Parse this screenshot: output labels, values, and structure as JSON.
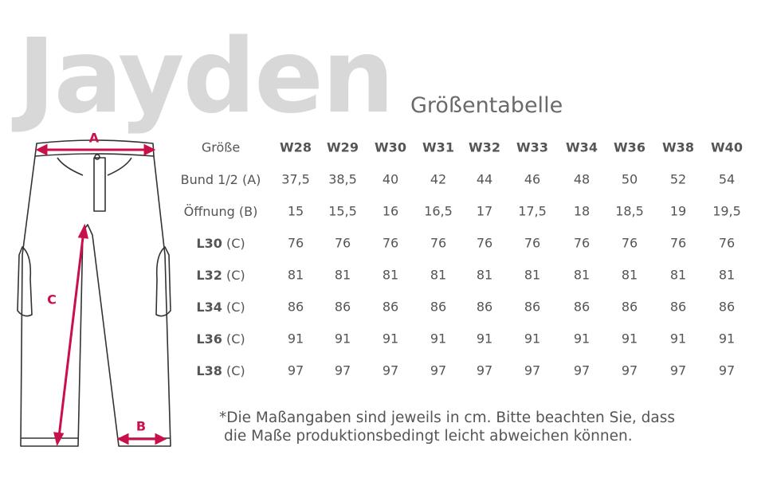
{
  "header": {
    "title": "Jayden",
    "subtitle": "Größentabelle"
  },
  "diagram": {
    "labels": [
      "A",
      "C",
      "B"
    ]
  },
  "table": {
    "header": {
      "label": "Größe",
      "sizes": [
        "W28",
        "W29",
        "W30",
        "W31",
        "W32",
        "W33",
        "W34",
        "W36",
        "W38",
        "W40"
      ]
    },
    "rows": [
      {
        "label": [
          "Bund 1/2 (A)"
        ],
        "values": [
          "37,5",
          "38,5",
          "40",
          "42",
          "44",
          "46",
          "48",
          "50",
          "52",
          "54"
        ]
      },
      {
        "label": [
          "Öffnung (B)"
        ],
        "values": [
          "15",
          "15,5",
          "16",
          "16,5",
          "17",
          "17,5",
          "18",
          "18,5",
          "19",
          "19,5"
        ]
      },
      {
        "label": [
          "L30",
          "(C)"
        ],
        "values": [
          "76",
          "76",
          "76",
          "76",
          "76",
          "76",
          "76",
          "76",
          "76",
          "76"
        ]
      },
      {
        "label": [
          "L32",
          "(C)"
        ],
        "values": [
          "81",
          "81",
          "81",
          "81",
          "81",
          "81",
          "81",
          "81",
          "81",
          "81"
        ]
      },
      {
        "label": [
          "L34",
          "(C)"
        ],
        "values": [
          "86",
          "86",
          "86",
          "86",
          "86",
          "86",
          "86",
          "86",
          "86",
          "86"
        ]
      },
      {
        "label": [
          "L36",
          "(C)"
        ],
        "values": [
          "91",
          "91",
          "91",
          "91",
          "91",
          "91",
          "91",
          "91",
          "91",
          "91"
        ]
      },
      {
        "label": [
          "L38",
          "(C)"
        ],
        "values": [
          "97",
          "97",
          "97",
          "97",
          "97",
          "97",
          "97",
          "97",
          "97",
          "97"
        ]
      }
    ]
  },
  "footnote": [
    "*Die Maßangaben sind jeweils in cm. Bitte beachten Sie, dass",
    "die Maße produktionsbedingt leicht abweichen können."
  ]
}
